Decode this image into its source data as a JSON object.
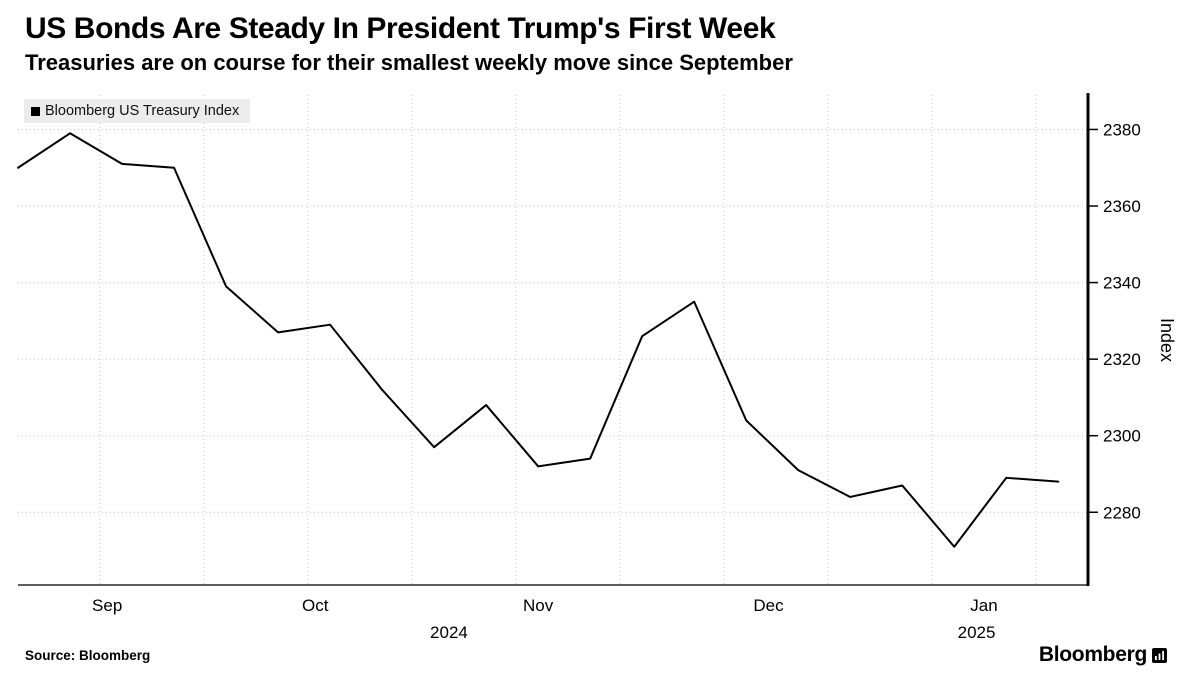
{
  "header": {
    "title": "US Bonds Are Steady In President Trump's First Week",
    "subtitle": "Treasuries are on course for their smallest weekly move since September"
  },
  "legend": {
    "label": "Bloomberg US Treasury Index",
    "swatch_color": "#000000"
  },
  "footer": {
    "source": "Source: Bloomberg",
    "logo_text": "Bloomberg"
  },
  "chart_data": {
    "type": "line",
    "title": "US Bonds Are Steady In President Trump's First Week",
    "subtitle": "Treasuries are on course for their smallest weekly move since September",
    "grid": {
      "horizontal": true,
      "vertical": true,
      "style": "dotted",
      "color": "#c6c6c6"
    },
    "x_axis": {
      "domain": {
        "start_date": "2024-09-06",
        "end_date": "2025-01-28"
      },
      "month_ticks": [
        {
          "label": "Sep",
          "date": "2024-09-18"
        },
        {
          "label": "Oct",
          "date": "2024-10-16"
        },
        {
          "label": "Nov",
          "date": "2024-11-15"
        },
        {
          "label": "Dec",
          "date": "2024-12-16"
        },
        {
          "label": "Jan",
          "date": "2025-01-14"
        }
      ],
      "year_labels": [
        {
          "label": "2024",
          "date": "2024-11-03"
        },
        {
          "label": "2025",
          "date": "2025-01-13"
        }
      ],
      "gridline_dates": [
        "2024-09-17",
        "2024-10-01",
        "2024-10-15",
        "2024-10-29",
        "2024-11-12",
        "2024-11-26",
        "2024-12-10",
        "2024-12-24",
        "2025-01-07",
        "2025-01-21"
      ]
    },
    "y_axis": {
      "label": "Index",
      "side": "right",
      "ticks": [
        2280,
        2300,
        2320,
        2340,
        2360,
        2380
      ],
      "range": [
        2261,
        2389
      ]
    },
    "series": [
      {
        "name": "Bloomberg US Treasury Index",
        "color": "#000000",
        "dates": [
          "2024-09-06",
          "2024-09-13",
          "2024-09-20",
          "2024-09-27",
          "2024-10-04",
          "2024-10-11",
          "2024-10-18",
          "2024-10-25",
          "2024-11-01",
          "2024-11-08",
          "2024-11-15",
          "2024-11-22",
          "2024-11-29",
          "2024-12-06",
          "2024-12-13",
          "2024-12-20",
          "2024-12-27",
          "2025-01-03",
          "2025-01-10",
          "2025-01-17",
          "2025-01-24"
        ],
        "values": [
          2370,
          2379,
          2371,
          2370,
          2339,
          2327,
          2329,
          2312,
          2297,
          2308,
          2292,
          2294,
          2326,
          2335,
          2304,
          2291,
          2284,
          2287,
          2271,
          2289,
          2288
        ]
      }
    ]
  }
}
